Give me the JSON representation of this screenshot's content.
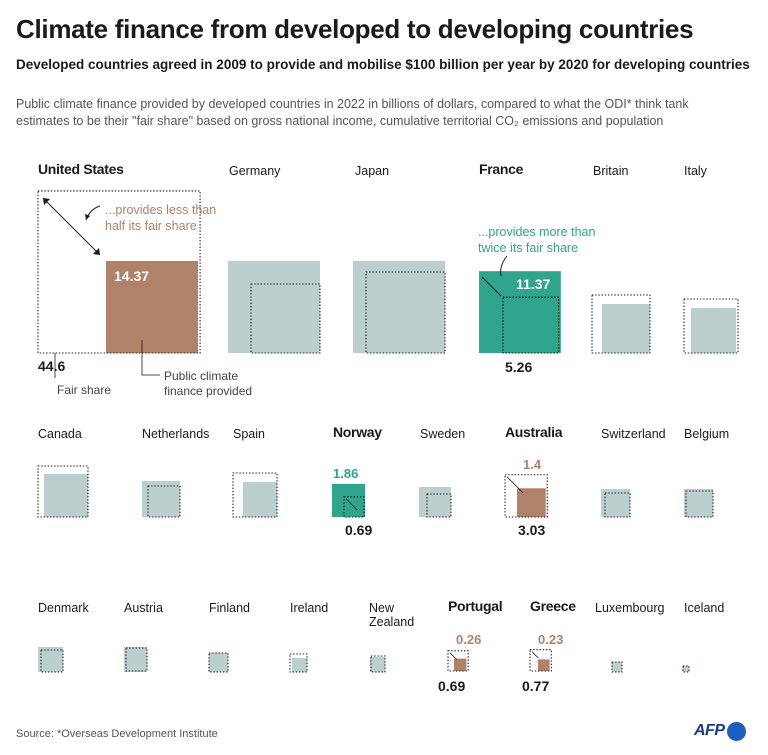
{
  "title": "Climate finance from developed to developing countries",
  "subtitle": "Developed countries agreed in 2009 to provide and mobilise $100 billion per year by 2020 for developing countries",
  "description": "Public climate finance provided by developed countries in 2022 in billions of dollars, compared to what the ODI* think tank estimates to be their \"fair share\" based on gross national income, cumulative territorial CO₂ emissions and population",
  "source": "Source: *Overseas Development Institute",
  "logo_text": "AFP",
  "colors": {
    "below_fair_share": "#b0826a",
    "above_fair_share": "#2ea58c",
    "other": "#bccfcf",
    "fair_share_outline": "#1a1a1a",
    "label_below": "#b0826a",
    "label_above": "#2ea58c"
  },
  "annotations": {
    "less": [
      "...provides less than",
      "half its fair share"
    ],
    "more": [
      "...provides more than",
      "twice its fair share"
    ],
    "fair_share_label": "Fair share",
    "provided_label": [
      "Public climate",
      "finance provided"
    ]
  },
  "chart_data": {
    "type": "proportional-area squares",
    "title": "Climate finance from developed to developing countries",
    "encoding": "square area proportional to value; filled square = public climate finance provided, dotted square = ODI fair share",
    "unit": "billions of dollars",
    "countries": [
      {
        "name": "United States",
        "provided": 14.37,
        "fair_share": 44.6,
        "highlight": "below",
        "show_values": true
      },
      {
        "name": "Germany",
        "provided": null,
        "fair_share": null,
        "highlight": "none",
        "show_values": false
      },
      {
        "name": "Japan",
        "provided": null,
        "fair_share": null,
        "highlight": "none",
        "show_values": false
      },
      {
        "name": "France",
        "provided": 11.37,
        "fair_share": 5.26,
        "highlight": "above",
        "show_values": true
      },
      {
        "name": "Britain",
        "provided": null,
        "fair_share": null,
        "highlight": "none",
        "show_values": false
      },
      {
        "name": "Italy",
        "provided": null,
        "fair_share": null,
        "highlight": "none",
        "show_values": false
      },
      {
        "name": "Canada",
        "provided": null,
        "fair_share": null,
        "highlight": "none",
        "show_values": false
      },
      {
        "name": "Netherlands",
        "provided": null,
        "fair_share": null,
        "highlight": "none",
        "show_values": false
      },
      {
        "name": "Spain",
        "provided": null,
        "fair_share": null,
        "highlight": "none",
        "show_values": false
      },
      {
        "name": "Norway",
        "provided": 1.86,
        "fair_share": 0.69,
        "highlight": "above",
        "show_values": true
      },
      {
        "name": "Sweden",
        "provided": null,
        "fair_share": null,
        "highlight": "none",
        "show_values": false
      },
      {
        "name": "Australia",
        "provided": 1.4,
        "fair_share": 3.03,
        "highlight": "below",
        "show_values": true
      },
      {
        "name": "Switzerland",
        "provided": null,
        "fair_share": null,
        "highlight": "none",
        "show_values": false
      },
      {
        "name": "Belgium",
        "provided": null,
        "fair_share": null,
        "highlight": "none",
        "show_values": false
      },
      {
        "name": "Denmark",
        "provided": null,
        "fair_share": null,
        "highlight": "none",
        "show_values": false
      },
      {
        "name": "Austria",
        "provided": null,
        "fair_share": null,
        "highlight": "none",
        "show_values": false
      },
      {
        "name": "Finland",
        "provided": null,
        "fair_share": null,
        "highlight": "none",
        "show_values": false
      },
      {
        "name": "Ireland",
        "provided": null,
        "fair_share": null,
        "highlight": "none",
        "show_values": false
      },
      {
        "name": "New Zealand",
        "provided": null,
        "fair_share": null,
        "highlight": "none",
        "show_values": false
      },
      {
        "name": "Portugal",
        "provided": 0.26,
        "fair_share": 0.69,
        "highlight": "below",
        "show_values": true
      },
      {
        "name": "Greece",
        "provided": 0.23,
        "fair_share": 0.77,
        "highlight": "below",
        "show_values": true
      },
      {
        "name": "Luxembourg",
        "provided": null,
        "fair_share": null,
        "highlight": "none",
        "show_values": false
      },
      {
        "name": "Iceland",
        "provided": null,
        "fair_share": null,
        "highlight": "none",
        "show_values": false
      }
    ]
  }
}
